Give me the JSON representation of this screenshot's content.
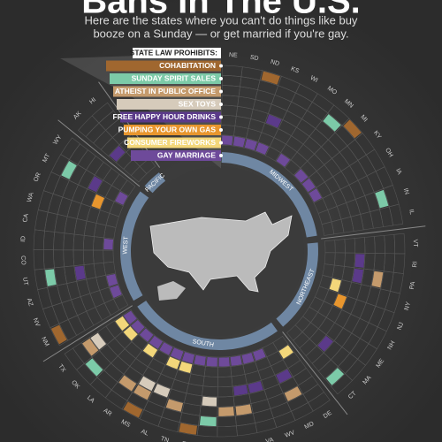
{
  "header": {
    "title": "Bans In The U.S.",
    "subtitle": [
      "Here are the states where you can't do things like buy",
      "booze on a Sunday — or get married if you're gay."
    ]
  },
  "legend": {
    "heading": "STATE LAW PROHIBITS:",
    "bans": [
      {
        "label": "COHABITATION",
        "color": "#a0672f"
      },
      {
        "label": "SUNDAY SPIRIT SALES",
        "color": "#7ccaa8"
      },
      {
        "label": "ATHEIST IN PUBLIC OFFICE",
        "color": "#c49a6c"
      },
      {
        "label": "SEX TOYS",
        "color": "#d6cbbb"
      },
      {
        "label": "FREE HAPPY HOUR DRINKS",
        "color": "#5b3a8a"
      },
      {
        "label": "PUMPING YOUR OWN GAS",
        "color": "#e8962e"
      },
      {
        "label": "CONSUMER FIREWORKS",
        "color": "#f3d77a"
      },
      {
        "label": "GAY MARRIAGE",
        "color": "#6e4a9a"
      }
    ]
  },
  "regions": [
    {
      "name": "MIDWEST",
      "states": [
        {
          "abbr": "NE",
          "bans": [
            7
          ]
        },
        {
          "abbr": "SD",
          "bans": [
            7
          ]
        },
        {
          "abbr": "ND",
          "bans": [
            0,
            7
          ]
        },
        {
          "abbr": "KS",
          "bans": [
            4,
            7
          ]
        },
        {
          "abbr": "WI",
          "bans": []
        },
        {
          "abbr": "MO",
          "bans": [
            7
          ]
        },
        {
          "abbr": "MN",
          "bans": [
            1
          ]
        },
        {
          "abbr": "MI",
          "bans": [
            0,
            7
          ]
        },
        {
          "abbr": "KY",
          "bans": [
            7
          ]
        },
        {
          "abbr": "OH",
          "bans": [
            7
          ]
        },
        {
          "abbr": "IA",
          "bans": []
        },
        {
          "abbr": "IN",
          "bans": [
            1
          ]
        },
        {
          "abbr": "IL",
          "bans": []
        }
      ]
    },
    {
      "name": "NORTHEAST",
      "states": [
        {
          "abbr": "VT",
          "bans": []
        },
        {
          "abbr": "RI",
          "bans": [
            4
          ]
        },
        {
          "abbr": "PA",
          "bans": [
            2,
            4
          ]
        },
        {
          "abbr": "NY",
          "bans": [
            6
          ]
        },
        {
          "abbr": "NJ",
          "bans": [
            5
          ]
        },
        {
          "abbr": "NH",
          "bans": []
        },
        {
          "abbr": "ME",
          "bans": []
        },
        {
          "abbr": "MA",
          "bans": [
            4
          ]
        },
        {
          "abbr": "CT",
          "bans": [
            1
          ]
        }
      ]
    },
    {
      "name": "SOUTH",
      "states": [
        {
          "abbr": "DE",
          "bans": [
            6
          ]
        },
        {
          "abbr": "MD",
          "bans": [
            2,
            4
          ]
        },
        {
          "abbr": "WV",
          "bans": [
            7
          ]
        },
        {
          "abbr": "VA",
          "bans": [
            4,
            7
          ]
        },
        {
          "abbr": "NC",
          "bans": [
            2,
            4,
            7
          ]
        },
        {
          "abbr": "SC",
          "bans": [
            2,
            7
          ]
        },
        {
          "abbr": "GA",
          "bans": [
            1,
            3,
            7
          ]
        },
        {
          "abbr": "FL",
          "bans": [
            0,
            7
          ]
        },
        {
          "abbr": "TN",
          "bans": [
            2,
            6,
            7
          ]
        },
        {
          "abbr": "AL",
          "bans": [
            3,
            6,
            7
          ]
        },
        {
          "abbr": "MS",
          "bans": [
            0,
            2,
            3,
            7
          ]
        },
        {
          "abbr": "AR",
          "bans": [
            2,
            6,
            7
          ]
        },
        {
          "abbr": "LA",
          "bans": [
            7
          ]
        },
        {
          "abbr": "OK",
          "bans": [
            1,
            6,
            7
          ]
        },
        {
          "abbr": "TX",
          "bans": [
            2,
            3,
            6,
            7
          ]
        }
      ]
    },
    {
      "name": "WEST",
      "states": [
        {
          "abbr": "NM",
          "bans": [
            0
          ]
        },
        {
          "abbr": "NV",
          "bans": [
            7
          ]
        },
        {
          "abbr": "AZ",
          "bans": [
            7
          ]
        },
        {
          "abbr": "UT",
          "bans": [
            1,
            4
          ]
        },
        {
          "abbr": "CO",
          "bans": []
        },
        {
          "abbr": "ID",
          "bans": [
            7
          ]
        },
        {
          "abbr": "CA",
          "bans": []
        },
        {
          "abbr": "WA",
          "bans": []
        },
        {
          "abbr": "OR",
          "bans": [
            5
          ]
        },
        {
          "abbr": "MT",
          "bans": [
            1,
            4,
            7
          ]
        },
        {
          "abbr": "WY",
          "bans": []
        }
      ]
    },
    {
      "name": "PACIFIC",
      "states": [
        {
          "abbr": "AK",
          "bans": [
            4
          ]
        },
        {
          "abbr": "HI",
          "bans": []
        }
      ]
    }
  ]
}
